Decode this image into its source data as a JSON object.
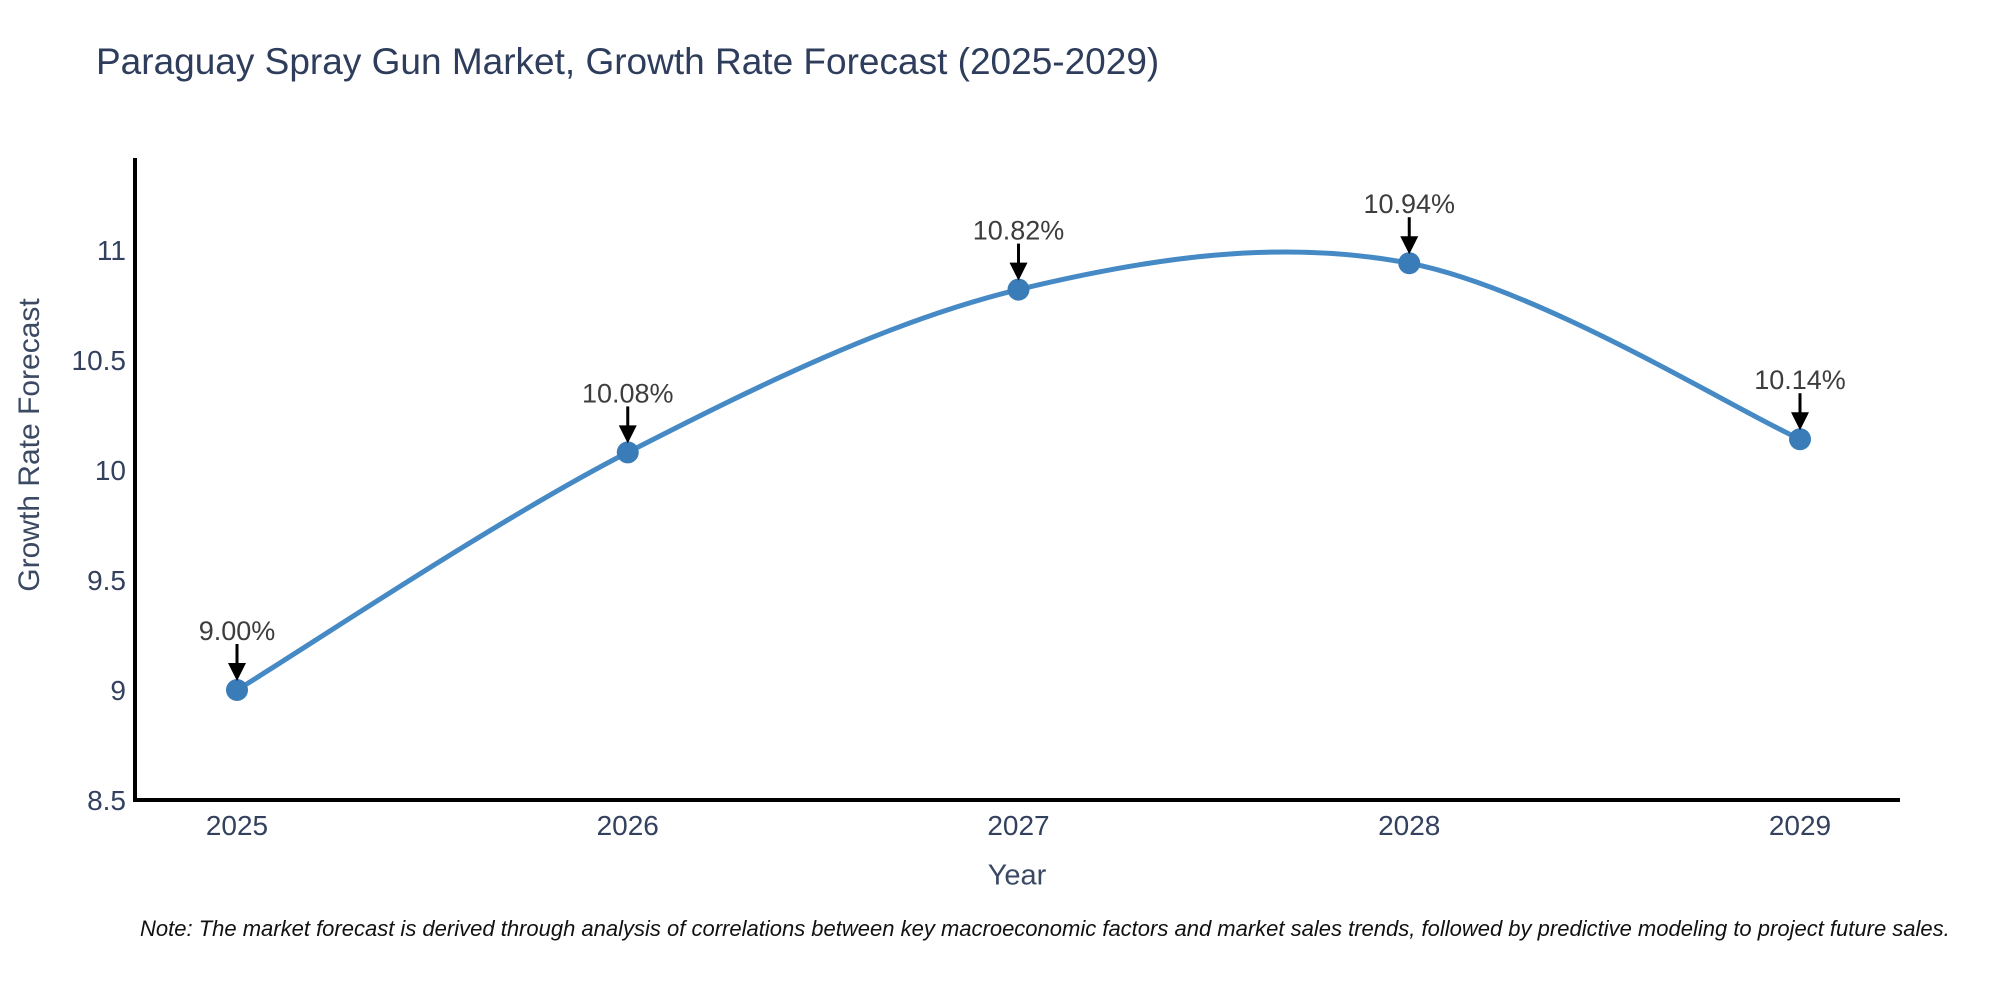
{
  "page": {
    "note": "Note: The market forecast is derived through analysis of correlations between key macroeconomic factors and market sales trends, followed by predictive modeling to project future sales."
  },
  "chart_data": {
    "type": "line",
    "title": "Paraguay Spray Gun Market, Growth Rate Forecast (2025-2029)",
    "xlabel": "Year",
    "ylabel": "Growth Rate Forecast",
    "categories": [
      "2025",
      "2026",
      "2027",
      "2028",
      "2029"
    ],
    "series": [
      {
        "name": "Growth Rate Forecast",
        "values": [
          9.0,
          10.08,
          10.82,
          10.94,
          10.14
        ]
      }
    ],
    "point_labels": [
      "9.00%",
      "10.08%",
      "10.82%",
      "10.94%",
      "10.14%"
    ],
    "y_ticks": [
      8.5,
      9,
      9.5,
      10,
      10.5,
      11
    ],
    "ylim": [
      8.5,
      11.4
    ],
    "grid": false,
    "legend_position": "none",
    "marker_shape": "circle",
    "annotation_arrows": "black-down-arrows",
    "colors": {
      "line": "#4589c5",
      "marker": "#3a7cb8",
      "arrow": "#000000",
      "axis": "#000000",
      "title_text": "#2e3d5c",
      "axis_label_text": "#3b4963",
      "tick_text": "#33415f",
      "annotation_text": "#3d3d3d",
      "note_text": "#111111",
      "background": "#ffffff"
    }
  }
}
